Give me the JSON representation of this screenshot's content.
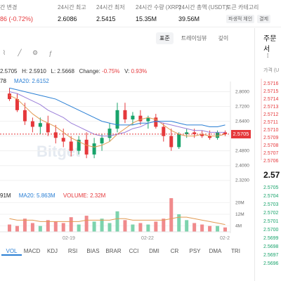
{
  "stats": [
    {
      "label": "간 변경",
      "value": "86 (-0.72%)",
      "negative": true
    },
    {
      "label": "24시간 최고",
      "value": "2.6086"
    },
    {
      "label": "24시간 최저",
      "value": "2.5415"
    },
    {
      "label": "24시간 수량 (XRP)",
      "value": "15.35M"
    },
    {
      "label": "24시간 총액 (USDT)",
      "value": "39.56M"
    }
  ],
  "token_category": {
    "label": "토큰 카테고리",
    "tags": [
      "파생적 체인",
      "결제"
    ]
  },
  "chart_tabs": [
    "표준",
    "트레이딩뷰",
    "깊이"
  ],
  "active_tab": "표준",
  "ohlc": {
    "o": "2.5705",
    "h_label": "H:",
    "h": "2.5910",
    "l_label": "L:",
    "l": "2.5668",
    "change_label": "Change:",
    "change": "-0.75%",
    "v_label": "V:",
    "v": "0.93%"
  },
  "ma_legend": {
    "left": "78",
    "ma20": "MA20: 2.6152"
  },
  "volume_legend": {
    "left": "91M",
    "ma20": "MA20: 5.863M",
    "volume": "VOLUME: 2.32M"
  },
  "watermark": "Bitget",
  "current_price": "2.5705",
  "indicators": [
    "VOL",
    "MACD",
    "KDJ",
    "RSI",
    "BIAS",
    "BRAR",
    "CCI",
    "DMI",
    "CR",
    "PSY",
    "DMA",
    "TRI"
  ],
  "active_indicator": "VOL",
  "order_book": {
    "title": "주문서",
    "subtitle": "가격 (U",
    "asks": [
      "2.5716",
      "2.5715",
      "2.5714",
      "2.5713",
      "2.5712",
      "2.5711",
      "2.5710",
      "2.5709",
      "2.5708",
      "2.5707",
      "2.5706"
    ],
    "last": "2.57",
    "bids": [
      "2.5705",
      "2.5704",
      "2.5703",
      "2.5702",
      "2.5701",
      "2.5700",
      "2.5699",
      "2.5698",
      "2.5697",
      "2.5696"
    ]
  },
  "chart_data": {
    "type": "candlestick",
    "price_axis": {
      "ticks": [
        "2.8000",
        "2.7200",
        "2.6400",
        "2.5600",
        "2.4800",
        "2.4000",
        "2.3200"
      ],
      "range": [
        2.3,
        2.84
      ]
    },
    "volume_axis": {
      "ticks": [
        "20M",
        "12M",
        "4M"
      ]
    },
    "x_ticks": [
      "02-19",
      "02-22",
      "02-2"
    ],
    "candles": [
      {
        "o": 2.79,
        "h": 2.82,
        "l": 2.75,
        "c": 2.76
      },
      {
        "o": 2.76,
        "h": 2.79,
        "l": 2.69,
        "c": 2.7
      },
      {
        "o": 2.7,
        "h": 2.74,
        "l": 2.62,
        "c": 2.64
      },
      {
        "o": 2.64,
        "h": 2.66,
        "l": 2.58,
        "c": 2.61
      },
      {
        "o": 2.61,
        "h": 2.66,
        "l": 2.57,
        "c": 2.63
      },
      {
        "o": 2.63,
        "h": 2.67,
        "l": 2.56,
        "c": 2.58
      },
      {
        "o": 2.58,
        "h": 2.62,
        "l": 2.52,
        "c": 2.55
      },
      {
        "o": 2.55,
        "h": 2.6,
        "l": 2.5,
        "c": 2.53
      },
      {
        "o": 2.53,
        "h": 2.56,
        "l": 2.45,
        "c": 2.48
      },
      {
        "o": 2.48,
        "h": 2.56,
        "l": 2.46,
        "c": 2.54
      },
      {
        "o": 2.54,
        "h": 2.58,
        "l": 2.44,
        "c": 2.46
      },
      {
        "o": 2.46,
        "h": 2.55,
        "l": 2.44,
        "c": 2.52
      },
      {
        "o": 2.52,
        "h": 2.57,
        "l": 2.48,
        "c": 2.55
      },
      {
        "o": 2.55,
        "h": 2.63,
        "l": 2.53,
        "c": 2.6
      },
      {
        "o": 2.6,
        "h": 2.74,
        "l": 2.58,
        "c": 2.7
      },
      {
        "o": 2.7,
        "h": 2.74,
        "l": 2.63,
        "c": 2.65
      },
      {
        "o": 2.65,
        "h": 2.69,
        "l": 2.62,
        "c": 2.67
      },
      {
        "o": 2.67,
        "h": 2.7,
        "l": 2.62,
        "c": 2.64
      },
      {
        "o": 2.64,
        "h": 2.67,
        "l": 2.6,
        "c": 2.66
      },
      {
        "o": 2.66,
        "h": 2.68,
        "l": 2.6,
        "c": 2.61
      },
      {
        "o": 2.61,
        "h": 2.63,
        "l": 2.53,
        "c": 2.56
      },
      {
        "o": 2.56,
        "h": 2.6,
        "l": 2.48,
        "c": 2.5
      },
      {
        "o": 2.5,
        "h": 2.58,
        "l": 2.49,
        "c": 2.57
      },
      {
        "o": 2.57,
        "h": 2.6,
        "l": 2.55,
        "c": 2.58
      },
      {
        "o": 2.58,
        "h": 2.6,
        "l": 2.55,
        "c": 2.57
      },
      {
        "o": 2.57,
        "h": 2.59,
        "l": 2.55,
        "c": 2.56
      },
      {
        "o": 2.56,
        "h": 2.59,
        "l": 2.54,
        "c": 2.55
      },
      {
        "o": 2.55,
        "h": 2.59,
        "l": 2.54,
        "c": 2.58
      },
      {
        "o": 2.58,
        "h": 2.59,
        "l": 2.56,
        "c": 2.57
      }
    ],
    "ma_lines": [
      {
        "name": "MA-short",
        "color": "#e29a52",
        "values": [
          2.78,
          2.76,
          2.72,
          2.68,
          2.65,
          2.63,
          2.61,
          2.58,
          2.55,
          2.53,
          2.51,
          2.5,
          2.51,
          2.53,
          2.57,
          2.6,
          2.63,
          2.65,
          2.66,
          2.65,
          2.62,
          2.59,
          2.57,
          2.56,
          2.56,
          2.57,
          2.56,
          2.56,
          2.57
        ]
      },
      {
        "name": "MA-mid",
        "color": "#9b7fd9",
        "values": [
          2.8,
          2.79,
          2.77,
          2.75,
          2.73,
          2.7,
          2.68,
          2.66,
          2.63,
          2.61,
          2.59,
          2.57,
          2.56,
          2.56,
          2.57,
          2.58,
          2.6,
          2.61,
          2.63,
          2.64,
          2.63,
          2.62,
          2.61,
          2.6,
          2.59,
          2.59,
          2.58,
          2.58,
          2.58
        ]
      },
      {
        "name": "MA20",
        "color": "#2a7fd4",
        "values": [
          2.82,
          2.81,
          2.8,
          2.79,
          2.78,
          2.77,
          2.76,
          2.74,
          2.72,
          2.7,
          2.68,
          2.66,
          2.64,
          2.63,
          2.62,
          2.62,
          2.62,
          2.63,
          2.63,
          2.64,
          2.64,
          2.64,
          2.63,
          2.62,
          2.62,
          2.62,
          2.61,
          2.61,
          2.62
        ]
      }
    ],
    "volume": [
      5,
      4,
      9,
      6,
      4,
      8,
      7,
      6,
      10,
      5,
      11,
      7,
      9,
      6,
      14,
      8,
      5,
      6,
      5,
      7,
      9,
      23,
      12,
      8,
      6,
      5,
      4,
      4,
      3
    ],
    "volume_ma": [
      9,
      8,
      8,
      8,
      7,
      7,
      7,
      7,
      7,
      7,
      8,
      8,
      8,
      8,
      9,
      9,
      8,
      8,
      8,
      8,
      8,
      9,
      10,
      10,
      9,
      8,
      7,
      6,
      5
    ]
  }
}
